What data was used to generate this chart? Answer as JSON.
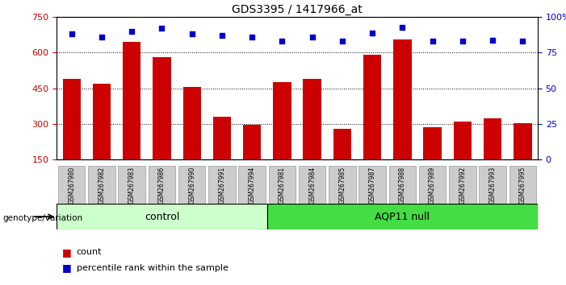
{
  "title": "GDS3395 / 1417966_at",
  "samples": [
    "GSM267980",
    "GSM267982",
    "GSM267983",
    "GSM267986",
    "GSM267990",
    "GSM267991",
    "GSM267994",
    "GSM267981",
    "GSM267984",
    "GSM267985",
    "GSM267987",
    "GSM267988",
    "GSM267989",
    "GSM267992",
    "GSM267993",
    "GSM267995"
  ],
  "counts": [
    490,
    470,
    645,
    580,
    455,
    330,
    295,
    475,
    490,
    280,
    590,
    655,
    285,
    310,
    325,
    305
  ],
  "percentiles": [
    88,
    86,
    90,
    92,
    88,
    87,
    86,
    83,
    86,
    83,
    89,
    93,
    83,
    83,
    84,
    83
  ],
  "control_count": 7,
  "aqp11_count": 9,
  "ylim_left": [
    150,
    750
  ],
  "ylim_right": [
    0,
    100
  ],
  "yticks_left": [
    150,
    300,
    450,
    600,
    750
  ],
  "yticks_right": [
    0,
    25,
    50,
    75,
    100
  ],
  "bar_color": "#cc0000",
  "dot_color": "#0000cc",
  "control_bg": "#ccffcc",
  "aqp11_bg": "#44dd44",
  "tick_label_bg": "#cccccc",
  "bar_width": 0.6
}
